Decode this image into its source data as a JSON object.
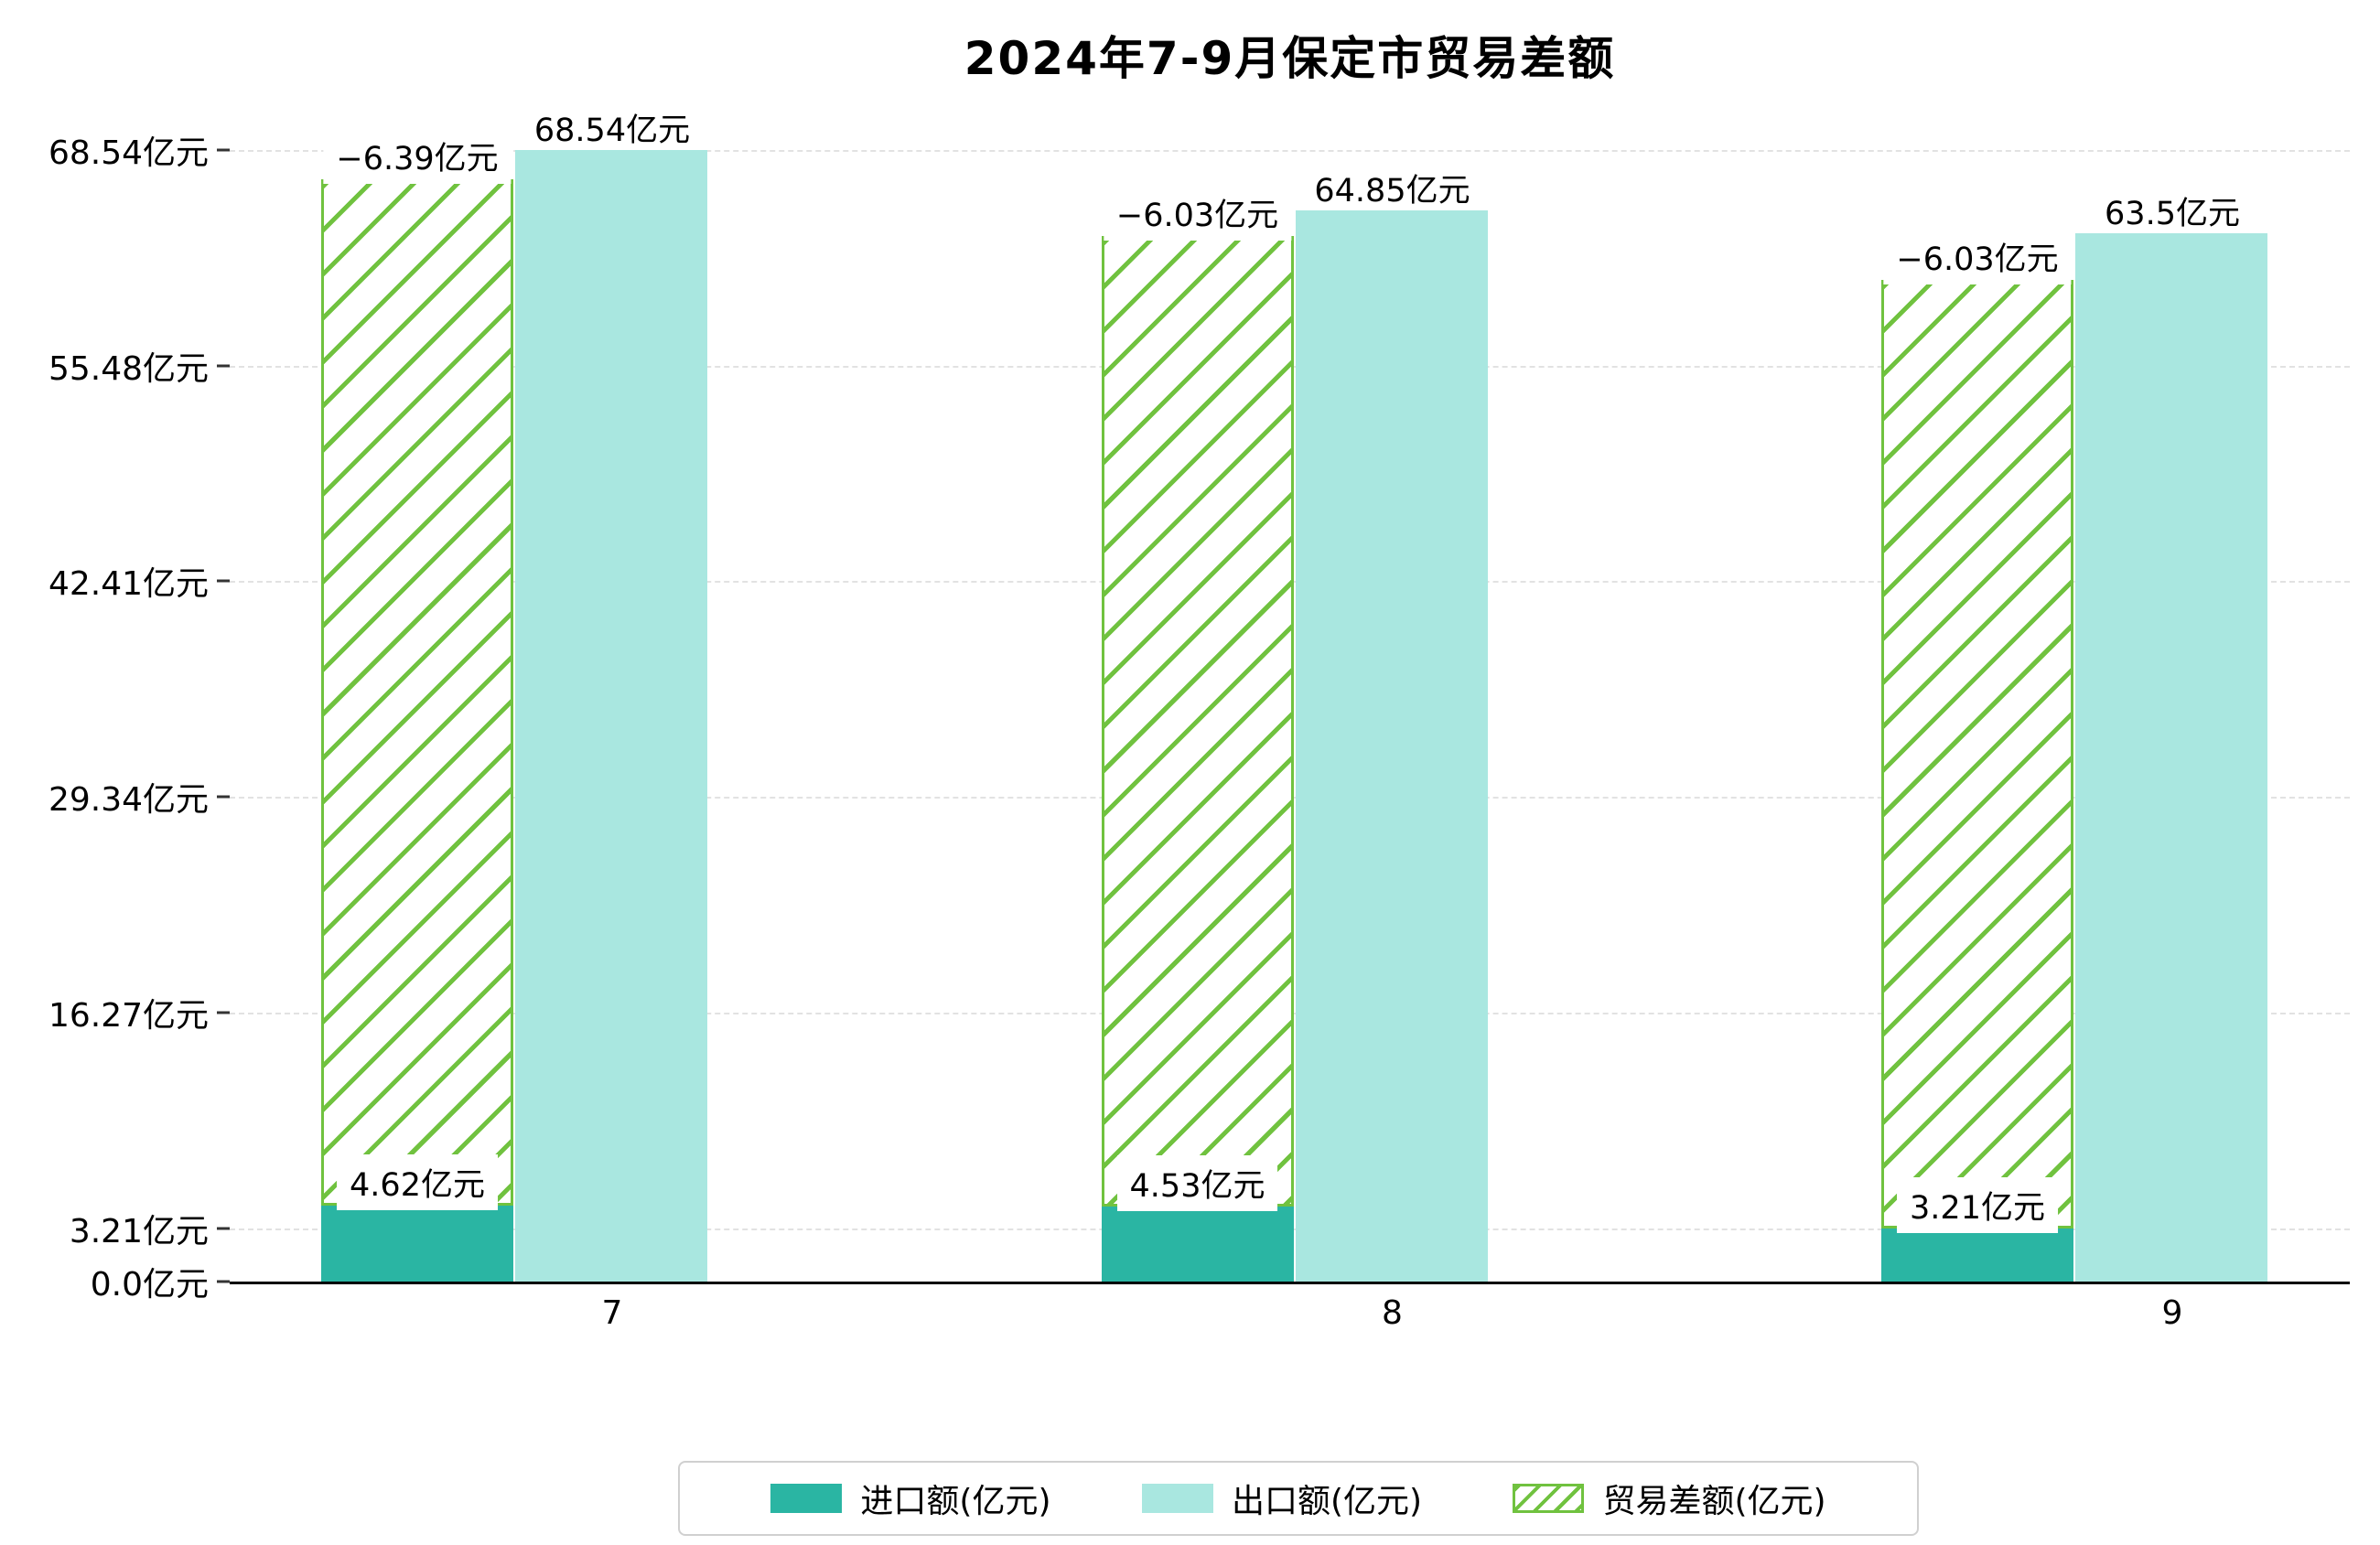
{
  "chart_data": {
    "type": "bar",
    "title": "2024年7-9月保定市贸易差额",
    "categories": [
      "7",
      "8",
      "9"
    ],
    "unit": "亿元",
    "series": [
      {
        "name": "进口额(亿元)",
        "style": "solid",
        "color": "#2ab5a3",
        "values": [
          4.62,
          4.53,
          3.21
        ],
        "value_labels": [
          "4.62亿元",
          "4.53亿元",
          "3.21亿元"
        ]
      },
      {
        "name": "出口额(亿元)",
        "style": "solid",
        "color": "#a9e7e0",
        "values": [
          68.54,
          64.85,
          63.5
        ],
        "value_labels": [
          "68.54亿元",
          "64.85亿元",
          "63.5亿元"
        ]
      },
      {
        "name": "贸易差额(亿元)",
        "style": "hatched",
        "color": "#70c23f",
        "values": [
          -6.39,
          -6.03,
          -6.03
        ],
        "value_labels": [
          "−6.39亿元",
          "−6.03亿元",
          "−6.03亿元"
        ]
      }
    ],
    "y_ticks": [
      {
        "value": 0.0,
        "label": "0.0亿元"
      },
      {
        "value": 3.21,
        "label": "3.21亿元"
      },
      {
        "value": 16.27,
        "label": "16.27亿元"
      },
      {
        "value": 29.34,
        "label": "29.34亿元"
      },
      {
        "value": 42.41,
        "label": "42.41亿元"
      },
      {
        "value": 55.48,
        "label": "55.48亿元"
      },
      {
        "value": 68.54,
        "label": "68.54亿元"
      }
    ],
    "ylim": [
      0,
      73
    ],
    "grid": "horizontal-dashed",
    "legend_position": "bottom"
  }
}
